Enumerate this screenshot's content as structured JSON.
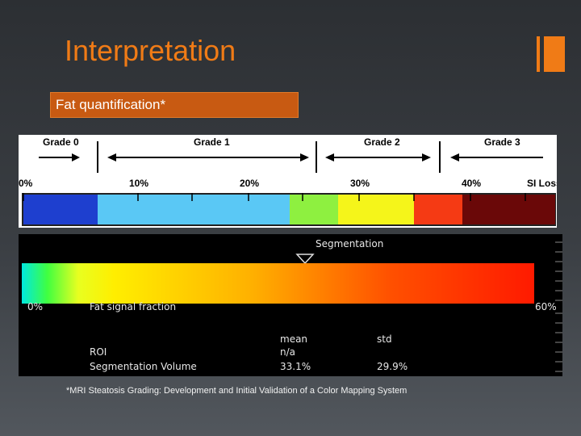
{
  "slide": {
    "title": "Interpretation",
    "section_label": "Fat quantification*",
    "footnote": "*MRI Steatosis Grading: Development and Initial Validation of a Color Mapping System"
  },
  "grade_scale": {
    "grades": [
      {
        "label": "Grade 0"
      },
      {
        "label": "Grade 1"
      },
      {
        "label": "Grade 2"
      },
      {
        "label": "Grade 3"
      }
    ],
    "ticks": [
      {
        "label": "0%"
      },
      {
        "label": "10%"
      },
      {
        "label": "20%"
      },
      {
        "label": "30%"
      },
      {
        "label": "40%"
      },
      {
        "label": "SI Loss"
      }
    ],
    "colors": [
      "#1e3fcf",
      "#5ac8f5",
      "#8ef040",
      "#f5f51a",
      "#f53a14",
      "#6a0808"
    ]
  },
  "segmentation": {
    "title": "Segmentation",
    "min_label": "0%",
    "axis_label": "Fat signal fraction",
    "max_label": "60%",
    "stats": {
      "mean_header": "mean",
      "std_header": "std",
      "rows": [
        {
          "label": "ROI",
          "mean": "n/a",
          "std": ""
        },
        {
          "label": "Segmentation Volume",
          "mean": "33.1%",
          "std": "29.9%"
        }
      ]
    }
  }
}
